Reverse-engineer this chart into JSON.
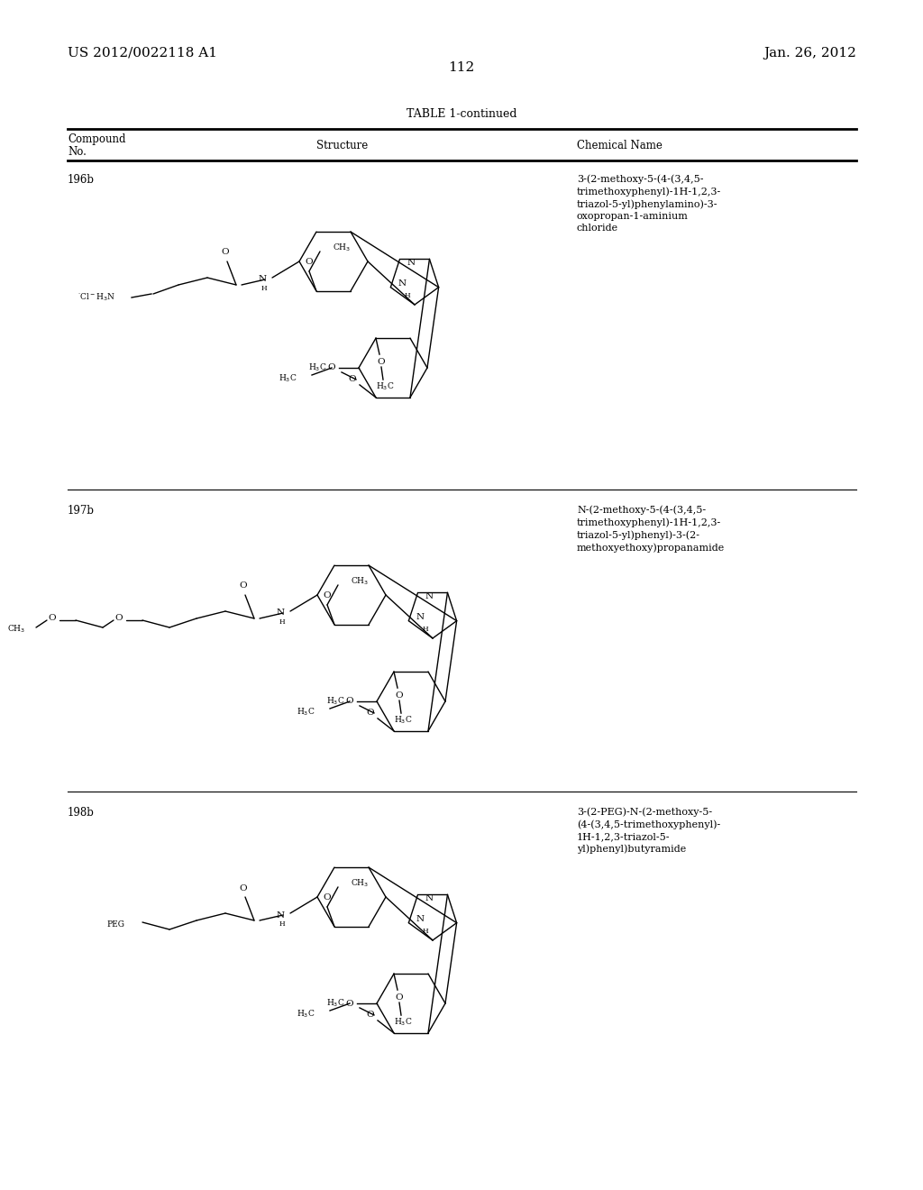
{
  "page_number": "112",
  "patent_left": "US 2012/0022118 A1",
  "patent_right": "Jan. 26, 2012",
  "table_title": "TABLE 1-continued",
  "col_compound": "Compound",
  "col_no": "No.",
  "col_structure": "Structure",
  "col_chemical": "Chemical Name",
  "name196": "3-(2-methoxy-5-(4-(3,4,5-\ntrimethoxyphenyl)-1H-1,2,3-\ntriazol-5-yl)phenylamino)-3-\noxopropan-1-aminium\nchloride",
  "name197": "N-(2-methoxy-5-(4-(3,4,5-\ntrimethoxyphenyl)-1H-1,2,3-\ntriazol-5-yl)phenyl)-3-(2-\nmethoxyethoxy)propanamide",
  "name198": "3-(2-PEG)-N-(2-methoxy-5-\n(4-(3,4,5-trimethoxyphenyl)-\n1H-1,2,3-triazol-5-\nyl)phenyl)butyramide",
  "background_color": "#ffffff",
  "text_color": "#000000",
  "line_color": "#000000"
}
